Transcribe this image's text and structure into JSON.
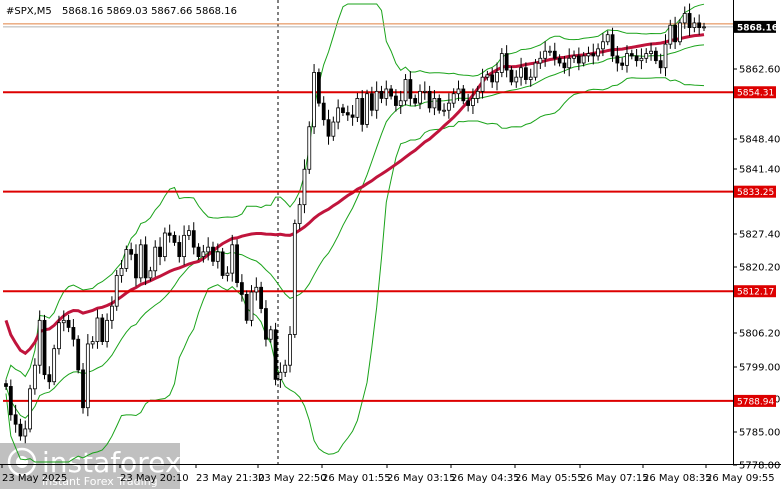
{
  "header": {
    "symbol": "#SPX,M5",
    "ohlc": "5868.16 5869.03 5867.66 5868.16"
  },
  "watermark": {
    "brand": "instaforex",
    "tagline": "Instant Forex Trading",
    "icon": "instaforex-logo-icon"
  },
  "colors": {
    "background": "#ffffff",
    "candle": "#000000",
    "bollinger": "#1aa31a",
    "moving_average": "#c0143c",
    "level": "#dd0000",
    "current_price": "#000000",
    "ask_line": "#e08040"
  },
  "chart_data": {
    "type": "candlestick",
    "title": "#SPX,M5",
    "x_tick_labels": [
      "23 May 2025",
      "23 May 20:10",
      "23 May 21:30",
      "23 May 22:50",
      "26 May 01:55",
      "26 May 03:15",
      "26 May 04:35",
      "26 May 05:55",
      "26 May 07:15",
      "26 May 08:35",
      "26 May 09:55"
    ],
    "y_tick_labels": [
      "5862.60",
      "5848.40",
      "5841.40",
      "5827.40",
      "5820.20",
      "5806.20",
      "5799.00",
      "5792.00",
      "5785.00",
      "5778.00"
    ],
    "ylim": [
      5776,
      5873
    ],
    "current_price": 5868.16,
    "levels": [
      {
        "label": "5854.31",
        "value": 5854.31
      },
      {
        "label": "5833.25",
        "value": 5833.25
      },
      {
        "label": "5812.17",
        "value": 5812.17
      },
      {
        "label": "5788.94",
        "value": 5788.94
      }
    ],
    "session_separator": "23 May 22:50",
    "grid": false,
    "bar_count": 150,
    "series": [
      {
        "name": "close",
        "values": [
          5792.0,
          5786.0,
          5784.0,
          5781.5,
          5783.0,
          5791.5,
          5796.5,
          5806.0,
          5794.5,
          5793.0,
          5800.0,
          5805.5,
          5806.0,
          5804.5,
          5802.0,
          5795.5,
          5787.5,
          5801.0,
          5801.5,
          5806.5,
          5801.5,
          5806.0,
          5809.0,
          5815.5,
          5817.0,
          5821.0,
          5820.0,
          5815.0,
          5822.0,
          5815.0,
          5816.5,
          5821.5,
          5819.5,
          5824.5,
          5824.0,
          5822.5,
          5819.5,
          5824.0,
          5825.0,
          5821.5,
          5819.5,
          5820.5,
          5821.5,
          5818.5,
          5820.5,
          5815.5,
          5816.0,
          5822.0,
          5814.0,
          5811.5,
          5806.0,
          5812.0,
          5813.0,
          5808.5,
          5802.0,
          5804.0,
          5793.5,
          5795.0,
          5796.5,
          5803.0,
          5826.5,
          5830.5,
          5838.0,
          5847.0,
          5858.5,
          5852.0,
          5848.5,
          5845.0,
          5848.0,
          5851.0,
          5850.0,
          5849.5,
          5849.0,
          5853.0,
          5847.5,
          5854.0,
          5850.5,
          5854.5,
          5853.0,
          5855.0,
          5853.5,
          5851.5,
          5852.5,
          5857.0,
          5853.0,
          5852.0,
          5854.5,
          5854.5,
          5851.0,
          5853.0,
          5850.5,
          5850.5,
          5852.0,
          5854.0,
          5855.0,
          5852.5,
          5851.5,
          5853.0,
          5854.5,
          5857.5,
          5858.0,
          5856.5,
          5858.5,
          5862.5,
          5859.0,
          5856.5,
          5857.5,
          5859.5,
          5857.0,
          5857.5,
          5860.5,
          5861.5,
          5863.0,
          5863.0,
          5861.5,
          5860.5,
          5859.5,
          5861.5,
          5862.0,
          5860.5,
          5862.0,
          5862.5,
          5862.0,
          5863.5,
          5865.0,
          5866.5,
          5862.0,
          5860.5,
          5860.0,
          5862.5,
          5862.0,
          5861.0,
          5861.5,
          5862.5,
          5863.0,
          5861.0,
          5859.5,
          5864.5,
          5868.5,
          5865.0,
          5869.0,
          5871.0,
          5868.0,
          5869.0,
          5868.0,
          5868.16
        ]
      }
    ]
  }
}
